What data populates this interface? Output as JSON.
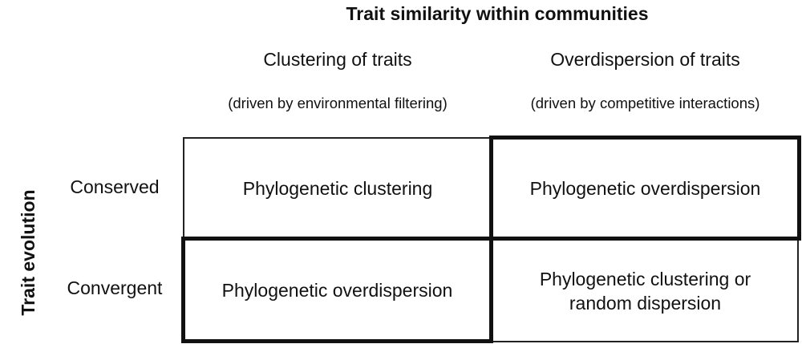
{
  "title": "Trait similarity within communities",
  "side_title": "Trait evolution",
  "columns": [
    {
      "heading": "Clustering of traits",
      "subheading": "(driven by environmental filtering)"
    },
    {
      "heading": "Overdispersion of traits",
      "subheading": "(driven by competitive interactions)"
    }
  ],
  "rows": [
    {
      "label": "Conserved",
      "cells": [
        "Phylogenetic clustering",
        "Phylogenetic overdispersion"
      ]
    },
    {
      "label": "Convergent",
      "cells": [
        "Phylogenetic overdispersion",
        "Phylogenetic clustering or random dispersion"
      ]
    }
  ],
  "highlighted_cells": [
    "rows.0.cells.1",
    "rows.1.cells.0"
  ]
}
